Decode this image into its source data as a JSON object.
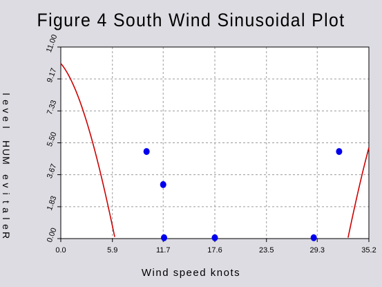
{
  "chart_data": {
    "type": "scatter",
    "title": "Figure 4 South Wind Sinusoidal Plot",
    "xlabel": "Wind speed knots",
    "ylabel": "Relative MUH level",
    "xlim": [
      0.0,
      35.2
    ],
    "ylim": [
      0.0,
      11.0
    ],
    "x_ticks": [
      "0.0",
      "5.9",
      "11.7",
      "17.6",
      "23.5",
      "29.3",
      "35.2"
    ],
    "y_ticks": [
      "0.00",
      "1.83",
      "3.67",
      "5.50",
      "7.33",
      "9.17",
      "11.00"
    ],
    "grid": true,
    "points": [
      {
        "x": 9.8,
        "y": 5.0
      },
      {
        "x": 11.7,
        "y": 3.1
      },
      {
        "x": 11.8,
        "y": 0.05
      },
      {
        "x": 17.6,
        "y": 0.05
      },
      {
        "x": 28.9,
        "y": 0.05
      },
      {
        "x": 31.8,
        "y": 5.0
      }
    ],
    "fit_curve": {
      "type": "sinusoid",
      "amplitude": 17.7,
      "offset": -7.2,
      "period": 42.0,
      "peak_x": -1.5,
      "clip_min": 0.0,
      "color": "#cc0000"
    },
    "point_color": "#0000ee"
  }
}
